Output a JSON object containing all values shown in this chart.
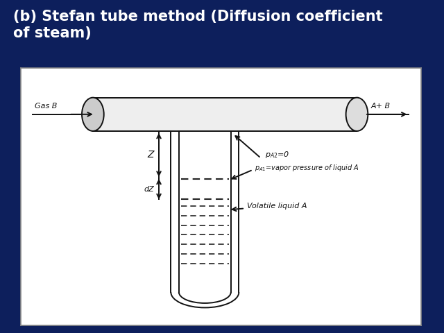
{
  "title": "(b) Stefan tube method (Diffusion coefficient\nof steam)",
  "title_fontsize": 15,
  "title_color": "white",
  "bg_color": "#0d1f5c",
  "diagram_bg": "white",
  "diagram_border": "#888888",
  "tube_color": "#111111",
  "dashed_color": "#222222",
  "label_gas_b": "Gas B",
  "label_a_plus_b": "A+ B",
  "label_z": "Z",
  "label_dz": "dZ",
  "label_pa2": "$p_{A2}$=0",
  "label_pa1": "$p_{A1}$=vapor pressure of liquid A",
  "label_volatile": "Volatile liquid A",
  "xlim": [
    0,
    10
  ],
  "ylim": [
    0,
    10
  ]
}
